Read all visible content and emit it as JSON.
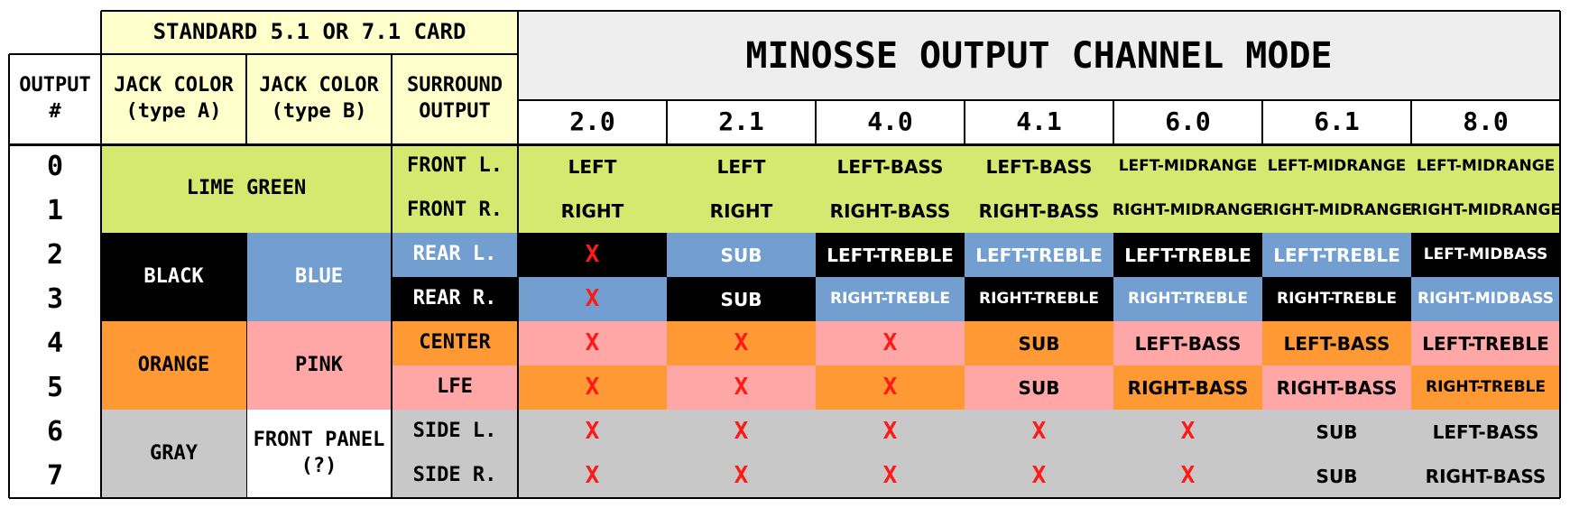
{
  "colors": {
    "lime": "#d5e86f",
    "black": "#000000",
    "blue": "#729fcf",
    "orange": "#ff9933",
    "pink": "#ffa6a6",
    "gray": "#c8c8c8",
    "white": "#ffffff",
    "header_yellow": "#ffffcc",
    "header_gray": "#eeeeee",
    "x_mark": "#ff1a1a"
  },
  "header": {
    "card_group": "STANDARD 5.1 OR 7.1 CARD",
    "output_col": "OUTPUT\n#",
    "jack_a": "JACK COLOR\n(type A)",
    "jack_b": "JACK COLOR\n(type B)",
    "surround": "SURROUND\nOUTPUT",
    "title": "MINOSSE OUTPUT CHANNEL MODE",
    "modes": [
      "2.0",
      "2.1",
      "4.0",
      "4.1",
      "6.0",
      "6.1",
      "8.0"
    ]
  },
  "jacks": [
    {
      "type_a": "LIME GREEN",
      "type_a_color": "lime",
      "type_b": "",
      "type_b_color": "lime"
    },
    {
      "type_a": "BLACK",
      "type_a_color": "black",
      "type_b": "BLUE",
      "type_b_color": "blue"
    },
    {
      "type_a": "ORANGE",
      "type_a_color": "orange",
      "type_b": "PINK",
      "type_b_color": "pink"
    },
    {
      "type_a": "GRAY",
      "type_a_color": "gray",
      "type_b": "FRONT PANEL\n(?)",
      "type_b_color": "white"
    }
  ],
  "rows": [
    {
      "output": "0",
      "surround": "FRONT L.",
      "surround_color": "lime",
      "cells": [
        [
          "LEFT",
          "lime"
        ],
        [
          "LEFT",
          "lime"
        ],
        [
          "LEFT-BASS",
          "lime"
        ],
        [
          "LEFT-BASS",
          "lime"
        ],
        [
          "LEFT-MIDRANGE",
          "lime"
        ],
        [
          "LEFT-MIDRANGE",
          "lime"
        ],
        [
          "LEFT-MIDRANGE",
          "lime"
        ]
      ]
    },
    {
      "output": "1",
      "surround": "FRONT R.",
      "surround_color": "lime",
      "cells": [
        [
          "RIGHT",
          "lime"
        ],
        [
          "RIGHT",
          "lime"
        ],
        [
          "RIGHT-BASS",
          "lime"
        ],
        [
          "RIGHT-BASS",
          "lime"
        ],
        [
          "RIGHT-MIDRANGE",
          "lime"
        ],
        [
          "RIGHT-MIDRANGE",
          "lime"
        ],
        [
          "RIGHT-MIDRANGE",
          "lime"
        ]
      ]
    },
    {
      "output": "2",
      "surround": "REAR L.",
      "surround_color": "blue",
      "cells": [
        [
          "X",
          "black"
        ],
        [
          "SUB",
          "blue"
        ],
        [
          "LEFT-TREBLE",
          "black"
        ],
        [
          "LEFT-TREBLE",
          "blue"
        ],
        [
          "LEFT-TREBLE",
          "black"
        ],
        [
          "LEFT-TREBLE",
          "blue"
        ],
        [
          "LEFT-MIDBASS",
          "black"
        ]
      ]
    },
    {
      "output": "3",
      "surround": "REAR R.",
      "surround_color": "black",
      "cells": [
        [
          "X",
          "blue"
        ],
        [
          "SUB",
          "black"
        ],
        [
          "RIGHT-TREBLE",
          "blue"
        ],
        [
          "RIGHT-TREBLE",
          "black"
        ],
        [
          "RIGHT-TREBLE",
          "blue"
        ],
        [
          "RIGHT-TREBLE",
          "black"
        ],
        [
          "RIGHT-MIDBASS",
          "blue"
        ]
      ]
    },
    {
      "output": "4",
      "surround": "CENTER",
      "surround_color": "orange",
      "cells": [
        [
          "X",
          "pink"
        ],
        [
          "X",
          "orange"
        ],
        [
          "X",
          "pink"
        ],
        [
          "SUB",
          "orange"
        ],
        [
          "LEFT-BASS",
          "pink"
        ],
        [
          "LEFT-BASS",
          "orange"
        ],
        [
          "LEFT-TREBLE",
          "pink"
        ]
      ]
    },
    {
      "output": "5",
      "surround": "LFE",
      "surround_color": "pink",
      "cells": [
        [
          "X",
          "orange"
        ],
        [
          "X",
          "pink"
        ],
        [
          "X",
          "orange"
        ],
        [
          "SUB",
          "pink"
        ],
        [
          "RIGHT-BASS",
          "orange"
        ],
        [
          "RIGHT-BASS",
          "pink"
        ],
        [
          "RIGHT-TREBLE",
          "orange"
        ]
      ]
    },
    {
      "output": "6",
      "surround": "SIDE L.",
      "surround_color": "gray",
      "cells": [
        [
          "X",
          "gray"
        ],
        [
          "X",
          "gray"
        ],
        [
          "X",
          "gray"
        ],
        [
          "X",
          "gray"
        ],
        [
          "X",
          "gray"
        ],
        [
          "SUB",
          "gray"
        ],
        [
          "LEFT-BASS",
          "gray"
        ]
      ]
    },
    {
      "output": "7",
      "surround": "SIDE R.",
      "surround_color": "gray",
      "cells": [
        [
          "X",
          "gray"
        ],
        [
          "X",
          "gray"
        ],
        [
          "X",
          "gray"
        ],
        [
          "X",
          "gray"
        ],
        [
          "X",
          "gray"
        ],
        [
          "SUB",
          "gray"
        ],
        [
          "RIGHT-BASS",
          "gray"
        ]
      ]
    }
  ]
}
